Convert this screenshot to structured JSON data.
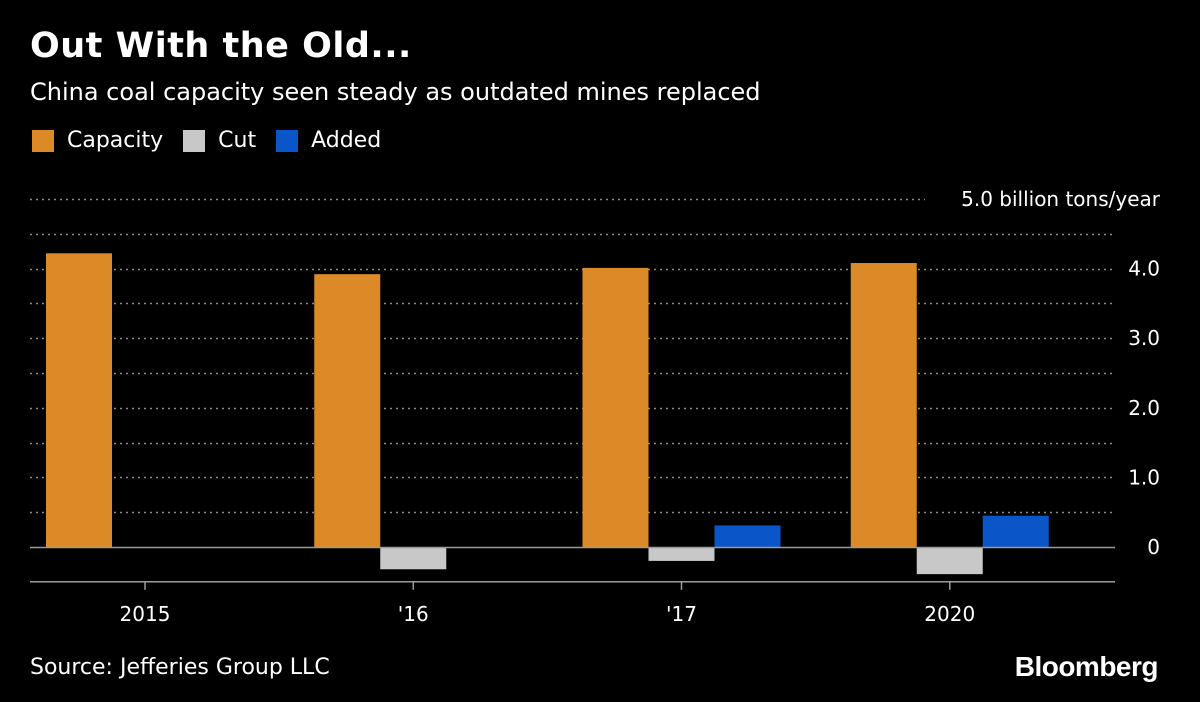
{
  "header": {
    "title": "Out With the Old...",
    "subtitle": "China coal capacity seen steady as outdated mines replaced"
  },
  "legend": [
    {
      "label": "Capacity",
      "color": "#dc8a27"
    },
    {
      "label": "Cut",
      "color": "#c8c8c8"
    },
    {
      "label": "Added",
      "color": "#0a56c8"
    }
  ],
  "footer": {
    "source": "Source: Jefferies Group LLC",
    "brand": "Bloomberg"
  },
  "chart_data": {
    "type": "bar",
    "categories": [
      "2015",
      "'16",
      "'17",
      "2020"
    ],
    "series": [
      {
        "name": "Capacity",
        "color": "#dc8a27",
        "values": [
          4.22,
          3.92,
          4.01,
          4.08
        ]
      },
      {
        "name": "Cut",
        "color": "#c8c8c8",
        "values": [
          0,
          -0.32,
          -0.2,
          -0.39
        ]
      },
      {
        "name": "Added",
        "color": "#0a56c8",
        "values": [
          0,
          0,
          0.31,
          0.45
        ]
      }
    ],
    "ylim": [
      -0.5,
      5.0
    ],
    "yticks": [
      0,
      1.0,
      2.0,
      3.0,
      4.0
    ],
    "ytick_labels": [
      "0",
      "1.0",
      "2.0",
      "3.0",
      "4.0"
    ],
    "ylabel": "5.0 billion tons/year",
    "grid": true,
    "legend_position": "top-left"
  }
}
